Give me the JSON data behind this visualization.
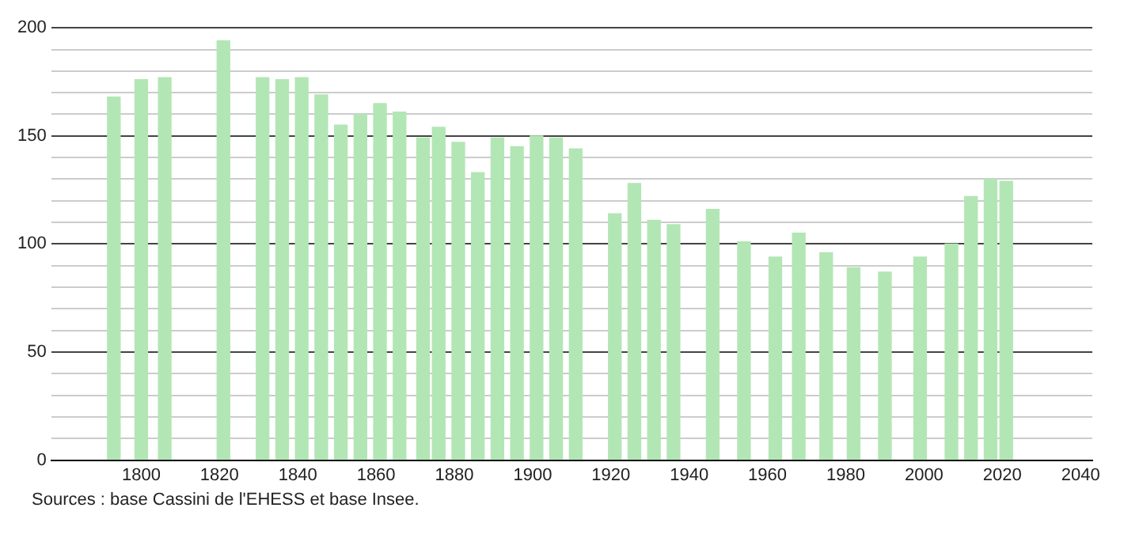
{
  "chart_data": {
    "type": "bar",
    "x": [
      1793,
      1800,
      1806,
      1821,
      1831,
      1836,
      1841,
      1846,
      1851,
      1856,
      1861,
      1866,
      1872,
      1876,
      1881,
      1886,
      1891,
      1896,
      1901,
      1906,
      1911,
      1921,
      1926,
      1931,
      1936,
      1946,
      1954,
      1962,
      1968,
      1975,
      1982,
      1990,
      1999,
      2007,
      2012,
      2017,
      2021
    ],
    "values": [
      168,
      176,
      177,
      194,
      177,
      176,
      177,
      169,
      155,
      160,
      165,
      161,
      149,
      154,
      147,
      133,
      149,
      145,
      150,
      149,
      144,
      114,
      128,
      111,
      109,
      116,
      101,
      94,
      105,
      96,
      89,
      87,
      94,
      100,
      122,
      130,
      129
    ],
    "color": "#b3e6b5",
    "xlim": [
      1777,
      2043
    ],
    "xticks": [
      1800,
      1820,
      1840,
      1860,
      1880,
      1900,
      1920,
      1940,
      1960,
      1980,
      2000,
      2020,
      2040
    ],
    "ylim": [
      0,
      200
    ],
    "yticks": [
      0,
      {
        "value": 10,
        "label": null
      },
      {
        "value": 20,
        "label": null
      },
      {
        "value": 30,
        "label": null
      },
      {
        "value": 40,
        "label": null
      },
      50,
      {
        "value": 60,
        "label": null
      },
      {
        "value": 70,
        "label": null
      },
      {
        "value": 80,
        "label": null
      },
      {
        "value": 90,
        "label": null
      },
      100,
      {
        "value": 110,
        "label": null
      },
      {
        "value": 120,
        "label": null
      },
      {
        "value": 130,
        "label": null
      },
      {
        "value": 140,
        "label": null
      },
      150,
      {
        "value": 160,
        "label": null
      },
      {
        "value": 170,
        "label": null
      },
      {
        "value": 180,
        "label": null
      },
      {
        "value": 190,
        "label": null
      },
      200
    ],
    "grid": true,
    "annotations": [
      "Sources : base Cassini de l'EHESS et base Insee."
    ]
  }
}
